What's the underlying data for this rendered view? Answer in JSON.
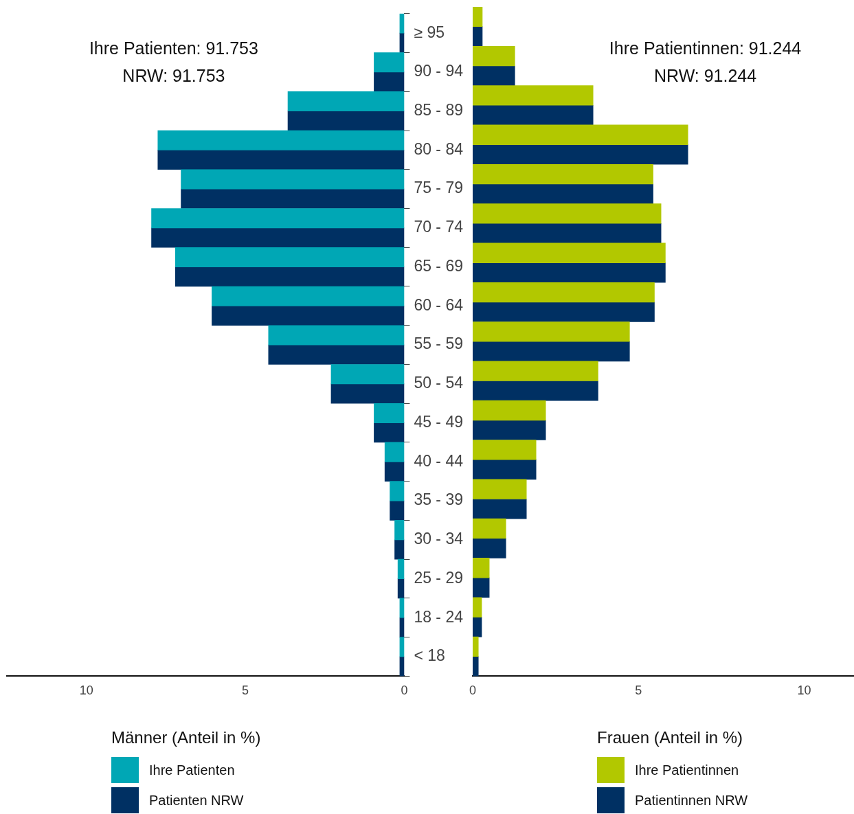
{
  "chart_data": [
    {
      "type": "bar",
      "orientation": "horizontal",
      "categories": [
        "≥ 95",
        "90 - 94",
        "85 - 89",
        "80 - 84",
        "75 - 79",
        "70 - 74",
        "65 - 69",
        "60 - 64",
        "55 - 59",
        "50 - 54",
        "45 - 49",
        "40 - 44",
        "35 - 39",
        "30 - 34",
        "25 - 29",
        "18 - 24",
        "< 18"
      ],
      "series": [
        {
          "name": "Ihre Patienten",
          "color": "#00a7b5",
          "values": [
            0.14,
            0.95,
            3.66,
            7.75,
            7.02,
            7.95,
            7.2,
            6.05,
            4.27,
            2.3,
            0.95,
            0.61,
            0.45,
            0.3,
            0.2,
            0.14,
            0.14
          ]
        },
        {
          "name": "Patienten NRW",
          "color": "#003063",
          "values": [
            0.14,
            0.95,
            3.66,
            7.75,
            7.02,
            7.95,
            7.2,
            6.05,
            4.27,
            2.3,
            0.95,
            0.61,
            0.45,
            0.3,
            0.2,
            0.14,
            0.14
          ]
        }
      ],
      "xlim": [
        12.5,
        0
      ],
      "xticks": [
        10,
        5,
        0
      ],
      "legend": "bottom",
      "legend_title": "Männer (Anteil in %)",
      "annotations": [
        "Ihre Patienten: 91.753",
        "NRW: 91.753"
      ]
    },
    {
      "type": "bar",
      "orientation": "horizontal",
      "categories": [
        null,
        null,
        null,
        null,
        null,
        null,
        null,
        null,
        null,
        null,
        null,
        null,
        null,
        null,
        null,
        null,
        null
      ],
      "series": [
        {
          "name": "Ihre Patientinnen",
          "color": "#b2c800",
          "values": [
            0.29,
            1.27,
            3.63,
            6.49,
            5.44,
            5.68,
            5.81,
            5.48,
            4.73,
            3.78,
            2.2,
            1.91,
            1.62,
            1.0,
            0.5,
            0.27,
            0.17
          ]
        },
        {
          "name": "Patientinnen NRW",
          "color": "#003063",
          "values": [
            0.29,
            1.27,
            3.63,
            6.49,
            5.44,
            5.68,
            5.81,
            5.48,
            4.73,
            3.78,
            2.2,
            1.91,
            1.62,
            1.0,
            0.5,
            0.27,
            0.17
          ]
        }
      ],
      "xlim": [
        0,
        11.5
      ],
      "xticks": [
        0,
        5,
        10
      ],
      "legend": "bottom",
      "legend_title": "Frauen (Anteil in %)",
      "tick_labels": "x",
      "annotations": [
        "Ihre Patientinnen: 91.244",
        "NRW: 91.244"
      ]
    }
  ]
}
